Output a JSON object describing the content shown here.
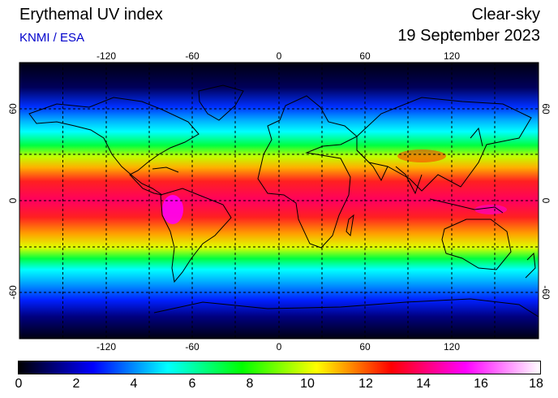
{
  "header": {
    "title": "Erythemal UV index",
    "credit": "KNMI / ESA",
    "mode": "Clear-sky",
    "date": "19 September 2023"
  },
  "map": {
    "lon_ticks": [
      "-120",
      "-60",
      "0",
      "60",
      "120"
    ],
    "lat_ticks": [
      "60",
      "0",
      "-60"
    ],
    "graticule": "dashed"
  },
  "colorbar": {
    "ticks": [
      "0",
      "2",
      "4",
      "6",
      "8",
      "10",
      "12",
      "14",
      "16",
      "18"
    ],
    "colors": [
      "#000000",
      "#0000ff",
      "#00ffff",
      "#00ff00",
      "#ffff00",
      "#ff0000",
      "#ff00ff",
      "#ffffff"
    ]
  },
  "colors": {
    "credit": "#0000cc",
    "coastline": "#000000"
  }
}
